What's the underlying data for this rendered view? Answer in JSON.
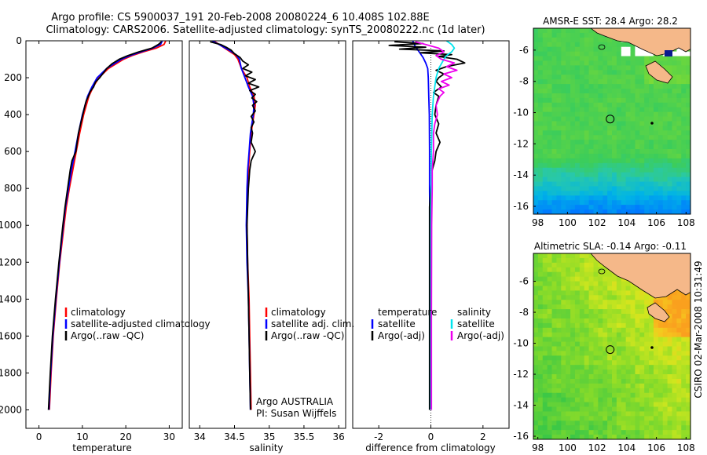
{
  "figure": {
    "title_line1": "Argo profile: CS 5900037_191 20-Feb-2008 20080224_6 10.408S 102.88E",
    "title_line2": "Climatology: CARS2006. Satellite-adjusted climatology: synTS_20080222.nc (1d later)",
    "side_stamp": "CSIRO 02-Mar-2008 10:31:49",
    "colors": {
      "climatology": "#ff0000",
      "satellite": "#0000ff",
      "argo": "#000000",
      "sat_salinity": "#00e5ee",
      "argo_salinity": "#ee00ee"
    }
  },
  "chart_data": [
    {
      "id": "temperature",
      "type": "line",
      "xlabel": "temperature",
      "ylabel": "",
      "xlim": [
        -3,
        33
      ],
      "ylim": [
        2100,
        0
      ],
      "xticks": [
        0,
        10,
        20,
        30
      ],
      "yticks": [
        0,
        200,
        400,
        600,
        800,
        1000,
        1200,
        1400,
        1600,
        1800,
        2000
      ],
      "legend": {
        "location": "bottom-right",
        "entries": [
          "climatology",
          "satellite-adjusted climatology",
          "Argo(..raw -QC)"
        ]
      },
      "series": [
        {
          "name": "climatology",
          "color": "red",
          "depth": [
            0,
            20,
            40,
            60,
            80,
            100,
            150,
            200,
            250,
            300,
            400,
            500,
            600,
            700,
            800,
            900,
            1000,
            1200,
            1400,
            1600,
            1800,
            2000
          ],
          "values": [
            29.2,
            28.8,
            27.0,
            24.0,
            21.5,
            19.5,
            16.0,
            13.8,
            12.5,
            11.5,
            10.3,
            9.4,
            8.6,
            7.8,
            7.0,
            6.3,
            5.8,
            4.8,
            4.0,
            3.3,
            2.8,
            2.4
          ]
        },
        {
          "name": "satellite-adjusted climatology",
          "color": "blue",
          "depth": [
            0,
            20,
            40,
            60,
            80,
            100,
            150,
            200,
            250,
            300,
            400,
            500,
            600,
            700,
            800,
            900,
            1000,
            1200,
            1400,
            1600,
            1800,
            2000
          ],
          "values": [
            28.4,
            28.0,
            26.2,
            23.5,
            21.0,
            19.0,
            15.6,
            13.4,
            12.2,
            11.2,
            10.0,
            9.1,
            8.3,
            7.5,
            6.8,
            6.1,
            5.6,
            4.7,
            3.9,
            3.2,
            2.7,
            2.3
          ]
        },
        {
          "name": "Argo(..raw -QC)",
          "color": "black",
          "depth": [
            5,
            20,
            40,
            60,
            80,
            100,
            125,
            150,
            175,
            200,
            225,
            250,
            275,
            300,
            325,
            350,
            400,
            450,
            500,
            550,
            600,
            650,
            700,
            800,
            900,
            1000,
            1200,
            1400,
            1600,
            1800,
            2000
          ],
          "values": [
            28.2,
            27.5,
            26.0,
            23.0,
            20.5,
            18.5,
            16.8,
            15.6,
            14.8,
            14.0,
            13.0,
            12.6,
            11.8,
            11.4,
            10.9,
            10.6,
            10.1,
            9.6,
            9.1,
            8.8,
            8.5,
            7.6,
            7.2,
            6.6,
            6.0,
            5.5,
            4.6,
            3.8,
            3.1,
            2.6,
            2.2
          ]
        }
      ]
    },
    {
      "id": "salinity",
      "type": "line",
      "xlabel": "salinity",
      "ylabel": "",
      "xlim": [
        33.85,
        36.1
      ],
      "ylim": [
        2100,
        0
      ],
      "xticks": [
        34,
        34.5,
        35,
        35.5,
        36
      ],
      "legend": {
        "location": "bottom-right",
        "entries": [
          "climatology",
          "satellite adj. clim.",
          "Argo(..raw -QC)"
        ]
      },
      "annotation_line1": "Argo AUSTRALIA",
      "annotation_line2": "PI: Susan Wijffels",
      "series": [
        {
          "name": "climatology",
          "color": "red",
          "depth": [
            0,
            25,
            50,
            75,
            100,
            150,
            200,
            250,
            300,
            350,
            400,
            500,
            600,
            700,
            800,
            1000,
            1200,
            1400,
            1600,
            1800,
            2000
          ],
          "values": [
            34.2,
            34.3,
            34.4,
            34.5,
            34.55,
            34.6,
            34.68,
            34.72,
            34.78,
            34.8,
            34.78,
            34.74,
            34.72,
            34.7,
            34.69,
            34.68,
            34.69,
            34.71,
            34.72,
            34.73,
            34.74
          ]
        },
        {
          "name": "satellite adj. clim.",
          "color": "blue",
          "depth": [
            0,
            25,
            50,
            75,
            100,
            150,
            200,
            250,
            300,
            350,
            400,
            500,
            600,
            700,
            800,
            1000,
            1200,
            1400,
            1600,
            1800,
            2000
          ],
          "values": [
            34.18,
            34.3,
            34.42,
            34.52,
            34.57,
            34.6,
            34.65,
            34.7,
            34.76,
            34.78,
            34.77,
            34.73,
            34.71,
            34.69,
            34.68,
            34.67,
            34.68,
            34.7,
            34.71,
            34.72,
            34.73
          ]
        },
        {
          "name": "Argo(..raw -QC)",
          "color": "black",
          "depth": [
            5,
            20,
            35,
            50,
            70,
            90,
            110,
            130,
            150,
            170,
            190,
            210,
            230,
            250,
            270,
            290,
            310,
            330,
            350,
            380,
            410,
            440,
            470,
            500,
            550,
            600,
            650,
            700,
            800,
            900,
            1000,
            1200,
            1400,
            1600,
            1800,
            2000
          ],
          "values": [
            34.15,
            34.3,
            34.38,
            34.45,
            34.5,
            34.58,
            34.62,
            34.7,
            34.62,
            34.75,
            34.66,
            34.8,
            34.7,
            34.85,
            34.72,
            34.8,
            34.75,
            34.82,
            34.76,
            34.8,
            34.74,
            34.78,
            34.74,
            34.76,
            34.74,
            34.8,
            34.74,
            34.72,
            34.7,
            34.69,
            34.68,
            34.69,
            34.7,
            34.71,
            34.72,
            34.73
          ]
        }
      ]
    },
    {
      "id": "difference",
      "type": "line",
      "xlabel": "difference from climatology",
      "ylabel": "",
      "xlim": [
        -3.0,
        3.0
      ],
      "ylim": [
        2100,
        0
      ],
      "xticks": [
        -2,
        0,
        2
      ],
      "legend": {
        "location": "bottom-right",
        "title_left": "temperature",
        "title_right": "salinity",
        "entries_left": [
          "satellite",
          "Argo(-adj)"
        ],
        "entries_right": [
          "satellite",
          "Argo(-adj)"
        ]
      },
      "series": [
        {
          "name": "temperature satellite",
          "color": "blue",
          "depth": [
            0,
            30,
            60,
            90,
            120,
            150,
            200,
            300,
            400,
            600,
            800,
            1000,
            1500,
            2000
          ],
          "values": [
            -0.7,
            -0.6,
            -0.45,
            -0.3,
            -0.2,
            -0.12,
            -0.1,
            -0.08,
            -0.06,
            -0.05,
            -0.05,
            -0.04,
            -0.03,
            -0.02
          ]
        },
        {
          "name": "temperature Argo(-adj)",
          "color": "black",
          "depth": [
            5,
            15,
            25,
            35,
            45,
            55,
            65,
            75,
            85,
            100,
            120,
            140,
            160,
            180,
            200,
            220,
            250,
            280,
            300,
            350,
            400,
            450,
            500,
            550,
            600,
            650,
            700,
            800,
            900,
            1000,
            1500,
            2000
          ],
          "values": [
            -1.4,
            -0.3,
            -1.6,
            -0.2,
            -1.2,
            0.5,
            -0.4,
            0.8,
            0.3,
            1.0,
            1.3,
            0.6,
            0.2,
            0.5,
            0.3,
            0.2,
            0.4,
            0.1,
            0.3,
            0.2,
            0.15,
            0.3,
            0.2,
            0.35,
            0.2,
            0.15,
            0.05,
            0.0,
            -0.05,
            -0.05,
            -0.05,
            -0.05
          ]
        },
        {
          "name": "salinity satellite",
          "color": "cyan",
          "depth": [
            0,
            20,
            40,
            60,
            80,
            100,
            150,
            200,
            300,
            400,
            600,
            800,
            1000,
            1500,
            2000
          ],
          "values": [
            0.6,
            0.8,
            0.9,
            0.8,
            0.6,
            0.5,
            0.3,
            0.2,
            0.1,
            0.05,
            0.02,
            0.01,
            0.0,
            0.0,
            0.0
          ]
        },
        {
          "name": "salinity Argo(-adj)",
          "color": "magenta",
          "depth": [
            5,
            20,
            40,
            60,
            80,
            100,
            120,
            140,
            160,
            180,
            200,
            220,
            240,
            260,
            280,
            300,
            350,
            400,
            450,
            500,
            600,
            700,
            800,
            1000,
            1500,
            2000
          ],
          "values": [
            -0.6,
            -0.2,
            0.3,
            0.5,
            0.2,
            0.4,
            0.9,
            0.6,
            1.0,
            0.5,
            0.8,
            0.4,
            0.7,
            0.3,
            0.5,
            0.35,
            0.2,
            0.25,
            0.15,
            0.1,
            0.1,
            0.05,
            0.05,
            0.03,
            0.02,
            0.02
          ]
        }
      ]
    },
    {
      "id": "sst_map",
      "type": "heatmap",
      "title": "AMSR-E SST: 28.4 Argo: 28.2",
      "xlim": [
        97.7,
        108.3
      ],
      "ylim": [
        -16.5,
        -4.6
      ],
      "xticks": [
        98,
        100,
        102,
        104,
        106,
        108
      ],
      "yticks": [
        -6,
        -8,
        -10,
        -12,
        -14,
        -16
      ],
      "float_position": {
        "lon": 102.88,
        "lat": -10.408
      }
    },
    {
      "id": "sla_map",
      "type": "heatmap",
      "title": "Altimetric SLA: -0.14 Argo: -0.11",
      "xlim": [
        97.7,
        108.3
      ],
      "ylim": [
        -16.2,
        -4.2
      ],
      "xticks": [
        98,
        100,
        102,
        104,
        106,
        108
      ],
      "yticks": [
        -6,
        -8,
        -10,
        -12,
        -14,
        -16
      ],
      "float_position": {
        "lon": 102.88,
        "lat": -10.408
      }
    }
  ]
}
